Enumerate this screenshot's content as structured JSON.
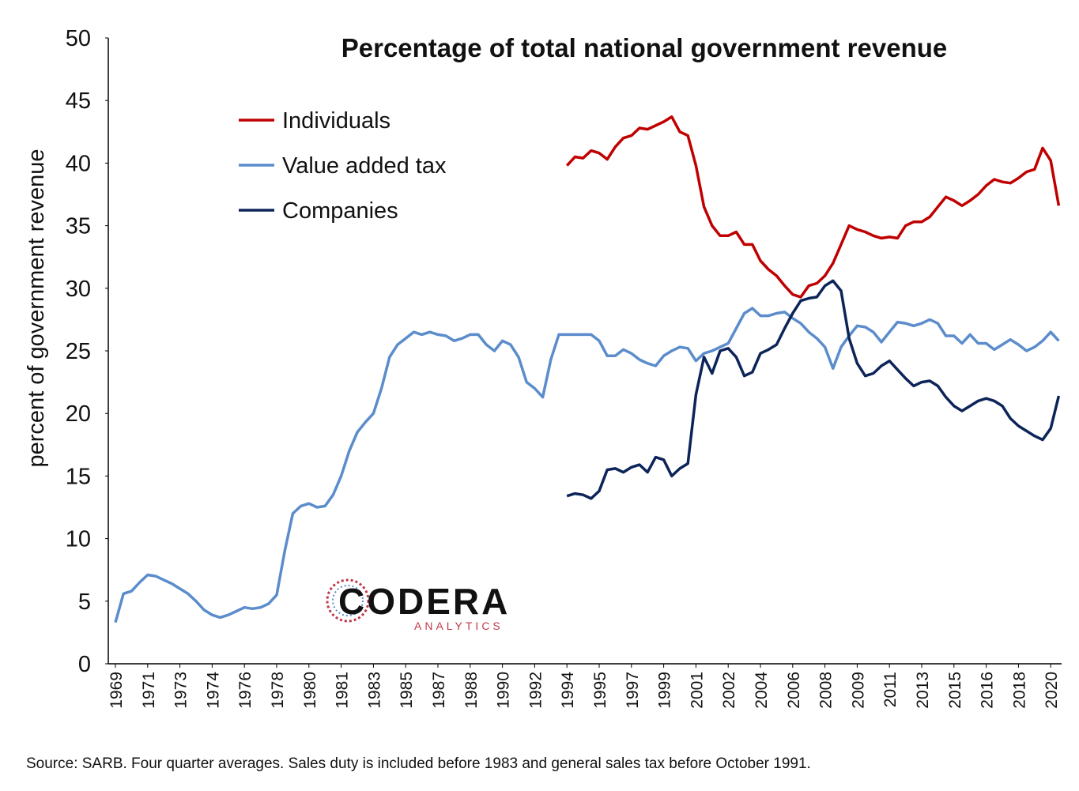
{
  "chart_data": {
    "type": "line",
    "title": "Percentage of total national government revenue",
    "y_label": "percent of government revenue",
    "source": "Source: SARB.  Four quarter averages. Sales duty is included before 1983 and general sales tax before October 1991.",
    "logo": {
      "name": "CODERA",
      "sub": "ANALYTICS"
    },
    "ylim": [
      0,
      50
    ],
    "yticks": [
      0,
      5,
      10,
      15,
      20,
      25,
      30,
      35,
      40,
      45,
      50
    ],
    "legend": "upper-left",
    "categories": [
      "1969",
      null,
      null,
      null,
      "1971",
      null,
      null,
      null,
      "1973",
      null,
      null,
      null,
      "1974",
      null,
      null,
      null,
      "1976",
      null,
      null,
      null,
      "1978",
      null,
      null,
      null,
      "1980",
      null,
      null,
      null,
      "1981",
      null,
      null,
      null,
      "1983",
      null,
      null,
      null,
      "1985",
      null,
      null,
      null,
      "1987",
      null,
      null,
      null,
      "1988",
      null,
      null,
      null,
      "1990",
      null,
      null,
      null,
      "1992",
      null,
      null,
      null,
      "1994",
      null,
      null,
      null,
      "1995",
      null,
      null,
      null,
      "1997",
      null,
      null,
      null,
      "1999",
      null,
      null,
      null,
      "2001",
      null,
      null,
      null,
      "2002",
      null,
      null,
      null,
      "2004",
      null,
      null,
      null,
      "2006",
      null,
      null,
      null,
      "2008",
      null,
      null,
      null,
      "2009",
      null,
      null,
      null,
      "2011",
      null,
      null,
      null,
      "2013",
      null,
      null,
      null,
      "2015",
      null,
      null,
      null,
      "2016",
      null,
      null,
      null,
      "2018",
      null,
      null,
      null,
      "2020",
      null
    ],
    "series": [
      {
        "name": "Individuals",
        "color": "#c00000",
        "values": [
          null,
          null,
          null,
          null,
          null,
          null,
          null,
          null,
          null,
          null,
          null,
          null,
          null,
          null,
          null,
          null,
          null,
          null,
          null,
          null,
          null,
          null,
          null,
          null,
          null,
          null,
          null,
          null,
          null,
          null,
          null,
          null,
          null,
          null,
          null,
          null,
          null,
          null,
          null,
          null,
          null,
          null,
          null,
          null,
          null,
          null,
          null,
          null,
          null,
          null,
          null,
          null,
          null,
          null,
          null,
          null,
          39.8,
          40.5,
          40.4,
          41.0,
          40.8,
          40.3,
          41.3,
          42.0,
          42.2,
          42.8,
          42.7,
          43.0,
          43.3,
          43.7,
          42.5,
          42.2,
          39.8,
          36.5,
          35.0,
          34.2,
          34.2,
          34.5,
          33.5,
          33.5,
          32.2,
          31.5,
          31.0,
          30.2,
          29.5,
          29.3,
          30.2,
          30.4,
          31.0,
          32.0,
          33.5,
          35.0,
          34.7,
          34.5,
          34.2,
          34.0,
          34.1,
          34.0,
          35.0,
          35.3,
          35.3,
          35.7,
          36.5,
          37.3,
          37.0,
          36.6,
          37.0,
          37.5,
          38.2,
          38.7,
          38.5,
          38.4,
          38.8,
          39.3,
          39.5,
          41.2,
          40.2,
          36.6
        ]
      },
      {
        "name": "Value added tax",
        "color": "#5b8ccb",
        "values": [
          3.3,
          5.6,
          5.8,
          6.5,
          7.1,
          7.0,
          6.7,
          6.4,
          6.0,
          5.6,
          5.0,
          4.3,
          3.9,
          3.7,
          3.9,
          4.2,
          4.5,
          4.4,
          4.5,
          4.8,
          5.5,
          9.0,
          12.0,
          12.6,
          12.8,
          12.5,
          12.6,
          13.5,
          15.0,
          17.0,
          18.5,
          19.3,
          20.0,
          22.0,
          24.5,
          25.5,
          26.0,
          26.5,
          26.3,
          26.5,
          26.3,
          26.2,
          25.8,
          26.0,
          26.3,
          26.3,
          25.5,
          25.0,
          25.8,
          25.5,
          24.5,
          22.5,
          22.0,
          21.3,
          24.3,
          26.3,
          26.3,
          26.3,
          26.3,
          26.3,
          25.8,
          24.6,
          24.6,
          25.1,
          24.8,
          24.3,
          24.0,
          23.8,
          24.6,
          25.0,
          25.3,
          25.2,
          24.2,
          24.8,
          25.0,
          25.3,
          25.6,
          26.8,
          28.0,
          28.4,
          27.8,
          27.8,
          28.0,
          28.1,
          27.6,
          27.2,
          26.5,
          26.0,
          25.3,
          23.6,
          25.3,
          26.2,
          27.0,
          26.9,
          26.5,
          25.7,
          26.5,
          27.3,
          27.2,
          27.0,
          27.2,
          27.5,
          27.2,
          26.2,
          26.2,
          25.6,
          26.3,
          25.6,
          25.6,
          25.1,
          25.5,
          25.9,
          25.5,
          25.0,
          25.3,
          25.8,
          26.5,
          25.8
        ]
      },
      {
        "name": "Companies",
        "color": "#0d2459",
        "values": [
          null,
          null,
          null,
          null,
          null,
          null,
          null,
          null,
          null,
          null,
          null,
          null,
          null,
          null,
          null,
          null,
          null,
          null,
          null,
          null,
          null,
          null,
          null,
          null,
          null,
          null,
          null,
          null,
          null,
          null,
          null,
          null,
          null,
          null,
          null,
          null,
          null,
          null,
          null,
          null,
          null,
          null,
          null,
          null,
          null,
          null,
          null,
          null,
          null,
          null,
          null,
          null,
          null,
          null,
          null,
          null,
          13.4,
          13.6,
          13.5,
          13.2,
          13.8,
          15.5,
          15.6,
          15.3,
          15.7,
          15.9,
          15.3,
          16.5,
          16.3,
          15.0,
          15.6,
          16.0,
          21.5,
          24.5,
          23.2,
          25.0,
          25.2,
          24.5,
          23.0,
          23.3,
          24.8,
          25.1,
          25.5,
          26.8,
          28.0,
          29.0,
          29.2,
          29.3,
          30.2,
          30.6,
          29.8,
          26.0,
          24.0,
          23.0,
          23.2,
          23.8,
          24.2,
          23.5,
          22.8,
          22.2,
          22.5,
          22.6,
          22.2,
          21.3,
          20.6,
          20.2,
          20.6,
          21.0,
          21.2,
          21.0,
          20.6,
          19.6,
          19.0,
          18.6,
          18.2,
          17.9,
          18.8,
          21.4
        ]
      }
    ]
  }
}
